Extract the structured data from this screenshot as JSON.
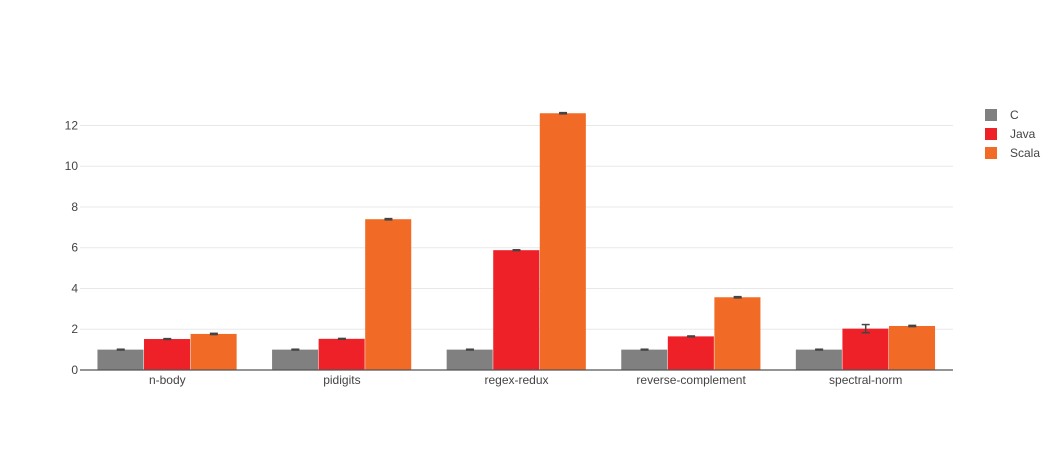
{
  "chart_data": {
    "type": "bar",
    "categories": [
      "n-body",
      "pidigits",
      "regex-redux",
      "reverse-complement",
      "spectral-norm"
    ],
    "series": [
      {
        "name": "C",
        "color": "#808080",
        "values": [
          1.0,
          1.0,
          1.0,
          1.0,
          1.0
        ],
        "error": [
          0.02,
          0.02,
          0.02,
          0.02,
          0.02
        ]
      },
      {
        "name": "Java",
        "color": "#ed2127",
        "values": [
          1.52,
          1.53,
          5.88,
          1.65,
          2.03
        ],
        "error": [
          0.02,
          0.02,
          0.02,
          0.02,
          0.2
        ]
      },
      {
        "name": "Scala",
        "color": "#f26b26",
        "values": [
          1.77,
          7.4,
          12.6,
          3.57,
          2.16
        ],
        "error": [
          0.03,
          0.03,
          0.03,
          0.03,
          0.03
        ]
      }
    ],
    "yticks": [
      0,
      2,
      4,
      6,
      8,
      10,
      12
    ],
    "ylim": [
      0,
      13.25
    ],
    "grid": true,
    "legend_position": "top-right"
  }
}
